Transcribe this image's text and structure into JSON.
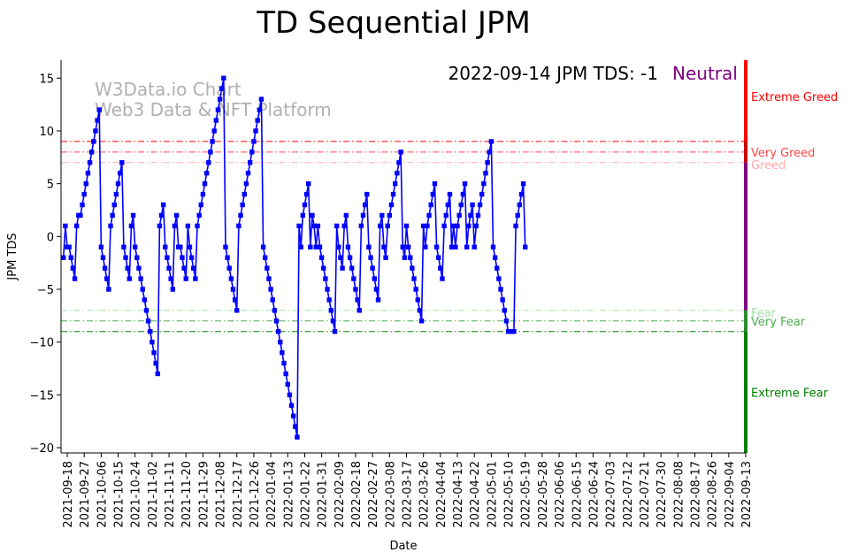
{
  "chart_data": {
    "type": "line",
    "title": "TD Sequential JPM",
    "xlabel": "Date",
    "ylabel": "JPM TDS",
    "ylim": [
      -20.5,
      16.7
    ],
    "yticks": [
      15,
      10,
      5,
      0,
      -5,
      -10,
      -15,
      -20
    ],
    "x_tick_labels": [
      "2021-09-18",
      "2021-09-27",
      "2021-10-06",
      "2021-10-15",
      "2021-10-24",
      "2021-11-02",
      "2021-11-11",
      "2021-11-20",
      "2021-11-29",
      "2021-12-08",
      "2021-12-17",
      "2021-12-26",
      "2022-01-04",
      "2022-01-13",
      "2022-01-22",
      "2022-01-31",
      "2022-02-09",
      "2022-02-18",
      "2022-02-27",
      "2022-03-08",
      "2022-03-17",
      "2022-03-26",
      "2022-04-04",
      "2022-04-13",
      "2022-04-22",
      "2022-05-01",
      "2022-05-10",
      "2022-05-19",
      "2022-05-28",
      "2022-06-06",
      "2022-06-15",
      "2022-06-24",
      "2022-07-03",
      "2022-07-12",
      "2022-07-21",
      "2022-07-30",
      "2022-08-08",
      "2022-08-17",
      "2022-08-26",
      "2022-09-04",
      "2022-09-13"
    ],
    "watermark": [
      "W3Data.io Chart",
      "Web3 Data & NFT Platform"
    ],
    "annotation": "2022-09-14 JPM TDS: -1",
    "status": {
      "label": "Neutral",
      "color": "#800080"
    },
    "series": [
      {
        "name": "JPM TDS",
        "color": "#0000ff",
        "start_date": "2021-09-16",
        "step_days": 1,
        "values": [
          -2,
          1,
          -1,
          -1,
          -2,
          -3,
          -4,
          1,
          2,
          2,
          3,
          4,
          5,
          6,
          7,
          8,
          9,
          10,
          11,
          12,
          -1,
          -2,
          -3,
          -4,
          -5,
          1,
          2,
          3,
          4,
          5,
          6,
          7,
          -1,
          -2,
          -3,
          -4,
          1,
          2,
          -1,
          -2,
          -3,
          -4,
          -5,
          -6,
          -7,
          -8,
          -9,
          -10,
          -11,
          -12,
          -13,
          1,
          2,
          3,
          -1,
          -2,
          -3,
          -4,
          -5,
          1,
          2,
          -1,
          -1,
          -2,
          -3,
          -4,
          1,
          -1,
          -2,
          -3,
          -4,
          1,
          2,
          3,
          4,
          5,
          6,
          7,
          8,
          9,
          10,
          11,
          12,
          13,
          14,
          15,
          -1,
          -2,
          -3,
          -4,
          -5,
          -6,
          -7,
          1,
          2,
          3,
          4,
          5,
          6,
          7,
          8,
          9,
          10,
          11,
          12,
          13,
          -1,
          -2,
          -3,
          -4,
          -5,
          -6,
          -7,
          -8,
          -9,
          -10,
          -11,
          -12,
          -13,
          -14,
          -15,
          -16,
          -17,
          -18,
          -19,
          1,
          -1,
          2,
          3,
          4,
          5,
          -1,
          2,
          1,
          -1,
          1,
          -1,
          -2,
          -3,
          -4,
          -5,
          -6,
          -7,
          -8,
          -9,
          1,
          -1,
          -2,
          -3,
          1,
          2,
          -1,
          -2,
          -3,
          -4,
          -5,
          -6,
          -7,
          1,
          2,
          3,
          4,
          -1,
          -2,
          -3,
          -4,
          -5,
          -6,
          1,
          2,
          -1,
          -2,
          1,
          2,
          3,
          4,
          5,
          6,
          7,
          8,
          -1,
          -2,
          1,
          -1,
          -2,
          -3,
          -4,
          -5,
          -6,
          -7,
          -8,
          1,
          -1,
          1,
          2,
          3,
          4,
          5,
          -1,
          -2,
          -3,
          -4,
          1,
          2,
          3,
          4,
          -1,
          1,
          -1,
          1,
          2,
          3,
          4,
          5,
          -1,
          1,
          2,
          3,
          -1,
          1,
          2,
          3,
          4,
          5,
          6,
          7,
          8,
          9,
          -1,
          -2,
          -3,
          -4,
          -5,
          -6,
          -7,
          -8,
          -9,
          -9,
          -9,
          -9,
          1,
          2,
          3,
          4,
          5,
          -1
        ]
      }
    ],
    "reference_lines": [
      {
        "label": "Extreme Greed",
        "value": 9,
        "color": "#ff0000"
      },
      {
        "label": "Very Greed",
        "value": 8,
        "color": "#ff4444"
      },
      {
        "label": "Greed",
        "value": 7,
        "color": "#ffaaaa"
      },
      {
        "label": "Fear",
        "value": -7,
        "color": "#a5dfa5"
      },
      {
        "label": "Very Fear",
        "value": -8,
        "color": "#4caf50"
      },
      {
        "label": "Extreme Fear",
        "value": -9,
        "color": "#008000"
      }
    ],
    "side_bar": [
      {
        "from": 9,
        "to": 16.7,
        "color": "#ff0000"
      },
      {
        "from": 7,
        "to": 9,
        "color": "#cc0000"
      },
      {
        "from": -7,
        "to": 7,
        "color": "#800080"
      },
      {
        "from": -9,
        "to": -7,
        "color": "#2e8b2e"
      },
      {
        "from": -20.5,
        "to": -9,
        "color": "#008000"
      }
    ]
  }
}
